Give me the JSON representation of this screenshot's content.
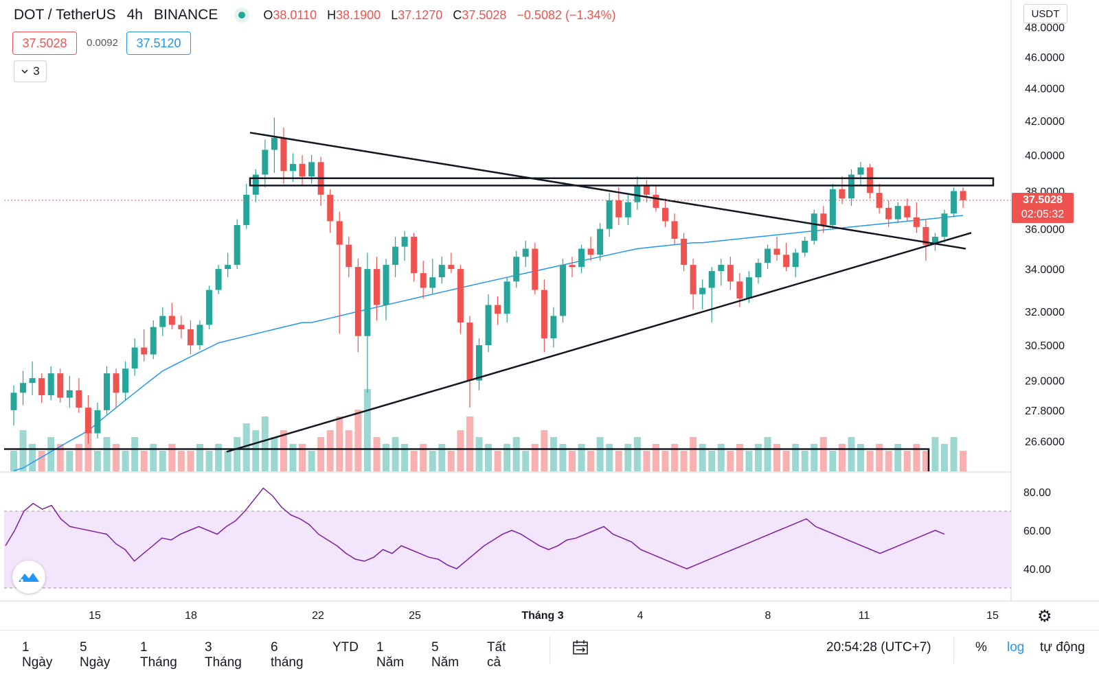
{
  "header": {
    "symbol": "DOT / TetherUS",
    "interval": "4h",
    "exchange": "BINANCE",
    "o_label": "O",
    "o_value": "38.0110",
    "h_label": "H",
    "h_value": "38.1900",
    "l_label": "L",
    "l_value": "37.1270",
    "c_label": "C",
    "c_value": "37.5028",
    "change": "−0.5082 (−1.34%)"
  },
  "quote": {
    "bid": "37.5028",
    "spread": "0.0092",
    "ask": "37.5120"
  },
  "indicators_toggle": {
    "icon": "chevron-down-icon",
    "count": "3"
  },
  "currency": "USDT",
  "last_price": {
    "price": "37.5028",
    "countdown": "02:05:32"
  },
  "bottom_bar": {
    "ranges": [
      "1 Ngày",
      "5 Ngày",
      "1 Tháng",
      "3 Tháng",
      "6 tháng",
      "YTD",
      "1 Năm",
      "5 Năm",
      "Tất cả"
    ],
    "time": "20:54:28 (UTC+7)",
    "percent": "%",
    "log": "log",
    "auto": "tự động"
  },
  "icons": {
    "logo": "tradingview-logo-icon",
    "calendar": "calendar-range-icon",
    "settings": "gear-icon"
  },
  "colors": {
    "up": "#26a69a",
    "down": "#ef5350",
    "ma": "#2196f3",
    "rsi": "#7b1fa2",
    "rsi_band": "#f3e5fc"
  },
  "chart_data": [
    {
      "type": "candlestick",
      "title": "DOT / TetherUS · 4h · BINANCE",
      "price_axis_ticks": [
        "26.6000",
        "27.8000",
        "29.0000",
        "30.5000",
        "32.0000",
        "34.0000",
        "36.0000",
        "38.0000",
        "40.0000",
        "42.0000",
        "44.0000",
        "46.0000",
        "48.0000"
      ],
      "x_tick_labels": [
        "15",
        "18",
        "22",
        "25",
        "Tháng 3",
        "4",
        "8",
        "11",
        "15"
      ],
      "last_price": 37.5028,
      "candles_ohlc": [
        [
          27.8,
          28.8,
          27.2,
          28.5
        ],
        [
          28.5,
          29.4,
          28.0,
          28.9
        ],
        [
          28.9,
          29.8,
          28.4,
          29.1
        ],
        [
          29.1,
          29.3,
          28.1,
          28.4
        ],
        [
          28.4,
          29.6,
          28.2,
          29.3
        ],
        [
          29.3,
          29.5,
          28.1,
          28.3
        ],
        [
          28.3,
          29.2,
          27.9,
          28.6
        ],
        [
          28.6,
          29.1,
          27.7,
          27.9
        ],
        [
          27.9,
          28.4,
          26.5,
          26.9
        ],
        [
          26.9,
          28.1,
          26.7,
          27.8
        ],
        [
          27.8,
          29.6,
          27.6,
          29.3
        ],
        [
          29.3,
          29.5,
          27.9,
          28.5
        ],
        [
          28.5,
          29.8,
          28.2,
          29.5
        ],
        [
          29.5,
          30.8,
          29.2,
          30.4
        ],
        [
          30.4,
          31.2,
          29.8,
          30.1
        ],
        [
          30.1,
          31.6,
          29.9,
          31.3
        ],
        [
          31.3,
          32.2,
          30.9,
          31.8
        ],
        [
          31.8,
          32.4,
          31.2,
          31.4
        ],
        [
          31.4,
          31.8,
          30.8,
          31.2
        ],
        [
          31.2,
          31.6,
          30.1,
          30.5
        ],
        [
          30.5,
          31.6,
          30.3,
          31.4
        ],
        [
          31.4,
          33.2,
          31.2,
          33.0
        ],
        [
          33.0,
          34.2,
          32.8,
          34.0
        ],
        [
          34.0,
          34.8,
          33.6,
          34.2
        ],
        [
          34.2,
          36.5,
          34.0,
          36.2
        ],
        [
          36.2,
          38.4,
          36.0,
          37.8
        ],
        [
          37.8,
          39.2,
          37.4,
          38.9
        ],
        [
          38.9,
          40.9,
          38.2,
          40.3
        ],
        [
          40.3,
          42.2,
          39.0,
          41.0
        ],
        [
          41.0,
          41.6,
          38.4,
          39.1
        ],
        [
          39.1,
          40.1,
          38.5,
          39.5
        ],
        [
          39.5,
          40.0,
          38.3,
          38.8
        ],
        [
          38.8,
          40.0,
          38.4,
          39.6
        ],
        [
          39.6,
          39.9,
          37.2,
          37.8
        ],
        [
          37.8,
          38.1,
          35.8,
          36.4
        ],
        [
          36.4,
          36.9,
          31.0,
          35.2
        ],
        [
          35.2,
          35.6,
          33.6,
          34.1
        ],
        [
          34.1,
          34.5,
          30.2,
          30.9
        ],
        [
          30.9,
          34.8,
          28.5,
          34.0
        ],
        [
          34.0,
          34.6,
          31.6,
          32.3
        ],
        [
          32.3,
          34.5,
          31.6,
          34.2
        ],
        [
          34.2,
          35.6,
          33.6,
          35.1
        ],
        [
          35.1,
          35.9,
          34.4,
          35.6
        ],
        [
          35.6,
          35.8,
          33.4,
          33.8
        ],
        [
          33.8,
          34.4,
          32.6,
          33.1
        ],
        [
          33.1,
          34.5,
          32.8,
          33.6
        ],
        [
          33.6,
          34.6,
          33.3,
          34.2
        ],
        [
          34.2,
          34.8,
          33.8,
          34.0
        ],
        [
          34.0,
          34.2,
          31.0,
          31.5
        ],
        [
          31.5,
          31.8,
          27.9,
          29.0
        ],
        [
          29.0,
          30.8,
          28.6,
          30.5
        ],
        [
          30.5,
          32.8,
          30.2,
          32.3
        ],
        [
          32.3,
          32.7,
          31.4,
          31.9
        ],
        [
          31.9,
          33.6,
          31.5,
          33.4
        ],
        [
          33.4,
          34.9,
          33.1,
          34.6
        ],
        [
          34.6,
          35.4,
          34.1,
          35.0
        ],
        [
          35.0,
          35.3,
          32.8,
          33.0
        ],
        [
          33.0,
          33.5,
          30.2,
          30.8
        ],
        [
          30.8,
          32.2,
          30.4,
          31.8
        ],
        [
          31.8,
          34.5,
          31.5,
          34.2
        ],
        [
          34.2,
          34.6,
          33.6,
          34.1
        ],
        [
          34.1,
          35.2,
          33.8,
          35.0
        ],
        [
          35.0,
          35.6,
          34.4,
          34.7
        ],
        [
          34.7,
          36.3,
          34.4,
          36.0
        ],
        [
          36.0,
          37.9,
          35.6,
          37.5
        ],
        [
          37.5,
          38.2,
          36.2,
          36.6
        ],
        [
          36.6,
          37.8,
          36.2,
          37.4
        ],
        [
          37.4,
          38.8,
          37.0,
          38.3
        ],
        [
          38.3,
          38.6,
          37.4,
          37.8
        ],
        [
          37.8,
          38.3,
          36.9,
          37.1
        ],
        [
          37.1,
          37.6,
          36.1,
          36.4
        ],
        [
          36.4,
          36.8,
          35.2,
          35.5
        ],
        [
          35.5,
          35.8,
          33.9,
          34.2
        ],
        [
          34.2,
          34.5,
          32.1,
          32.8
        ],
        [
          32.8,
          33.5,
          32.1,
          33.1
        ],
        [
          33.1,
          34.1,
          31.5,
          33.9
        ],
        [
          33.9,
          34.5,
          33.2,
          34.2
        ],
        [
          34.2,
          34.6,
          33.0,
          33.4
        ],
        [
          33.4,
          33.8,
          32.2,
          32.6
        ],
        [
          32.6,
          33.9,
          32.4,
          33.6
        ],
        [
          33.6,
          34.5,
          33.3,
          34.3
        ],
        [
          34.3,
          35.2,
          34.0,
          35.0
        ],
        [
          35.0,
          35.6,
          34.4,
          34.7
        ],
        [
          34.7,
          35.3,
          33.9,
          34.1
        ],
        [
          34.1,
          35.0,
          33.6,
          34.8
        ],
        [
          34.8,
          35.6,
          34.6,
          35.4
        ],
        [
          35.4,
          37.0,
          35.2,
          36.8
        ],
        [
          36.8,
          37.2,
          35.8,
          36.2
        ],
        [
          36.2,
          38.4,
          36.0,
          38.1
        ],
        [
          38.1,
          38.8,
          37.3,
          37.6
        ],
        [
          37.6,
          39.2,
          37.2,
          38.9
        ],
        [
          38.9,
          39.6,
          38.3,
          39.3
        ],
        [
          39.3,
          39.5,
          37.6,
          37.9
        ],
        [
          37.9,
          38.4,
          36.8,
          37.1
        ],
        [
          37.1,
          37.5,
          36.1,
          36.5
        ],
        [
          36.5,
          37.4,
          36.3,
          37.2
        ],
        [
          37.2,
          37.6,
          36.4,
          36.6
        ],
        [
          36.6,
          37.4,
          35.8,
          36.1
        ],
        [
          36.1,
          36.5,
          34.4,
          35.2
        ],
        [
          35.2,
          35.8,
          34.9,
          35.6
        ],
        [
          35.6,
          37.0,
          35.3,
          36.8
        ],
        [
          36.8,
          38.2,
          36.6,
          38.0
        ],
        [
          38.0,
          38.2,
          37.1,
          37.5028
        ]
      ],
      "volume_approx": [
        3,
        6,
        4,
        3,
        5,
        4,
        3,
        4,
        6,
        3,
        5,
        4,
        3,
        5,
        3,
        4,
        3,
        4,
        3,
        3,
        4,
        3,
        4,
        3,
        5,
        7,
        6,
        8,
        5,
        6,
        4,
        4,
        3,
        5,
        6,
        8,
        6,
        9,
        12,
        5,
        4,
        5,
        4,
        3,
        4,
        3,
        4,
        3,
        6,
        8,
        5,
        4,
        3,
        4,
        5,
        3,
        4,
        6,
        5,
        4,
        3,
        4,
        3,
        5,
        4,
        3,
        4,
        5,
        3,
        4,
        3,
        4,
        3,
        5,
        4,
        3,
        4,
        3,
        4,
        3,
        4,
        5,
        4,
        3,
        4,
        3,
        4,
        5,
        3,
        4,
        5,
        4,
        3,
        4,
        3,
        4,
        3,
        4,
        3,
        5,
        4,
        5,
        3
      ],
      "moving_average_approx": [
        25.5,
        25.6,
        25.8,
        26.0,
        26.2,
        26.4,
        26.6,
        26.8,
        27.0,
        27.3,
        27.6,
        27.9,
        28.2,
        28.5,
        28.8,
        29.1,
        29.4,
        29.6,
        29.8,
        30.0,
        30.2,
        30.4,
        30.6,
        30.7,
        30.8,
        30.9,
        31.0,
        31.1,
        31.2,
        31.3,
        31.4,
        31.5,
        31.5,
        31.6,
        31.7,
        31.8,
        31.9,
        32.0,
        32.1,
        32.2,
        32.3,
        32.4,
        32.5,
        32.6,
        32.7,
        32.8,
        32.9,
        33.0,
        33.1,
        33.2,
        33.3,
        33.4,
        33.5,
        33.6,
        33.7,
        33.8,
        33.9,
        34.0,
        34.1,
        34.2,
        34.3,
        34.4,
        34.5,
        34.6,
        34.7,
        34.8,
        34.9,
        35.0,
        35.05,
        35.1,
        35.15,
        35.2,
        35.25,
        35.3,
        35.3,
        35.35,
        35.4,
        35.45,
        35.5,
        35.55,
        35.6,
        35.65,
        35.7,
        35.75,
        35.8,
        35.85,
        35.9,
        35.95,
        36.0,
        36.05,
        36.1,
        36.15,
        36.2,
        36.25,
        36.3,
        36.35,
        36.4,
        36.45,
        36.5,
        36.55,
        36.6,
        36.65,
        36.7
      ],
      "drawn_lines_price_at_ends": {
        "descending_trendline": [
          41.3,
          35.0
        ],
        "ascending_trendline": [
          26.2,
          35.8
        ],
        "resistance_band": [
          38.3,
          38.7
        ],
        "support_line": 26.3
      }
    },
    {
      "type": "line",
      "name": "RSI",
      "y_ticks": [
        "40.00",
        "60.00",
        "80.00"
      ],
      "bands": [
        30,
        70
      ],
      "values_approx": [
        52,
        60,
        70,
        74,
        71,
        73,
        66,
        62,
        61,
        60,
        59,
        58,
        53,
        50,
        44,
        48,
        52,
        56,
        55,
        58,
        60,
        62,
        60,
        58,
        62,
        65,
        70,
        76,
        82,
        78,
        72,
        68,
        66,
        63,
        58,
        55,
        52,
        48,
        45,
        44,
        46,
        50,
        48,
        52,
        50,
        48,
        46,
        45,
        42,
        40,
        44,
        48,
        52,
        55,
        58,
        60,
        58,
        55,
        52,
        50,
        52,
        55,
        56,
        58,
        60,
        62,
        58,
        56,
        54,
        50,
        48,
        46,
        44,
        42,
        40,
        42,
        44,
        46,
        48,
        50,
        52,
        54,
        56,
        58,
        60,
        62,
        64,
        66,
        62,
        60,
        58,
        56,
        54,
        52,
        50,
        48,
        50,
        52,
        54,
        56,
        58,
        60,
        58
      ]
    }
  ]
}
